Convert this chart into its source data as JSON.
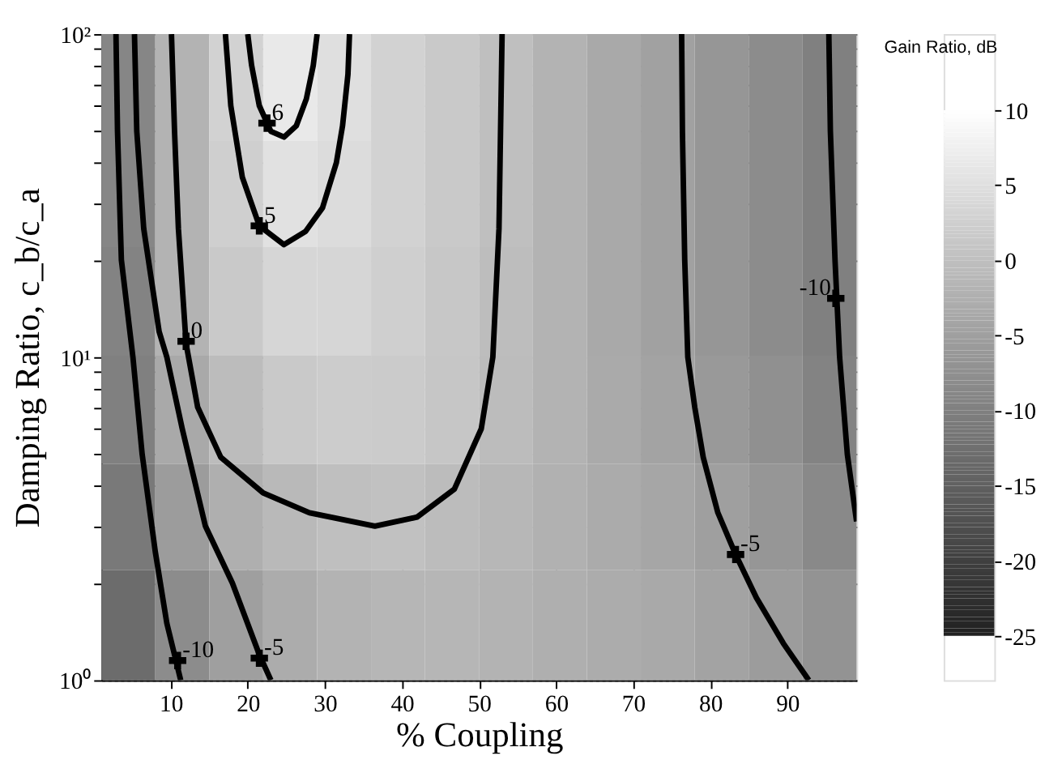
{
  "chart_data": {
    "type": "heatmap",
    "xlabel": "% Coupling",
    "ylabel": "Damping Ratio, c_b/c_a",
    "legend_title": "Gain Ratio, dB",
    "x": [
      4.5,
      11.5,
      18.5,
      25.5,
      32.5,
      39.5,
      46.5,
      53.5,
      60.5,
      67.5,
      74.5,
      81.5,
      88.5,
      95.5
    ],
    "y": [
      68,
      32,
      15,
      6.8,
      3.2,
      1.5
    ],
    "cells": [
      [
        -9,
        -2,
        3,
        6.5,
        5,
        3,
        1.5,
        0,
        -2,
        -3.5,
        -4.8,
        -6.5,
        -8,
        -10
      ],
      [
        -9,
        -2,
        2.5,
        5.3,
        4.5,
        3,
        1.5,
        0,
        -2,
        -3.5,
        -4.8,
        -6.5,
        -8,
        -10
      ],
      [
        -9.5,
        -2,
        1.5,
        3.5,
        3.5,
        2.5,
        1.2,
        -0.3,
        -2,
        -3.5,
        -4.8,
        -6.5,
        -8,
        -10
      ],
      [
        -10,
        -3.5,
        -0.5,
        1.5,
        2,
        1.8,
        1,
        -0.5,
        -2,
        -3.3,
        -4.5,
        -6,
        -7.5,
        -9.5
      ],
      [
        -11,
        -5.5,
        -2.5,
        -1,
        0,
        0.2,
        -0.5,
        -1.3,
        -2.3,
        -3.2,
        -4,
        -5,
        -6.5,
        -8.5
      ],
      [
        -13,
        -8,
        -5,
        -3,
        -2,
        -1.5,
        -1.5,
        -2,
        -2.5,
        -3,
        -3.5,
        -4.5,
        -5.5,
        -7
      ]
    ],
    "clim": [
      -25,
      10
    ],
    "cticks": [
      -25,
      -20,
      -15,
      -10,
      -5,
      0,
      5,
      10
    ],
    "xlim": [
      1,
      99
    ],
    "xticks": [
      10,
      20,
      30,
      40,
      50,
      60,
      70,
      80,
      90
    ],
    "ylim": [
      1,
      100
    ],
    "log": "y",
    "yticks": [
      {
        "value": 1,
        "label": "10⁰"
      },
      {
        "value": 2,
        "label": null
      },
      {
        "value": 3,
        "label": null
      },
      {
        "value": 4,
        "label": null
      },
      {
        "value": 5,
        "label": null
      },
      {
        "value": 6,
        "label": null
      },
      {
        "value": 7,
        "label": null
      },
      {
        "value": 8,
        "label": null
      },
      {
        "value": 9,
        "label": null
      },
      {
        "value": 10,
        "label": "10¹"
      },
      {
        "value": 20,
        "label": null
      },
      {
        "value": 30,
        "label": null
      },
      {
        "value": 40,
        "label": null
      },
      {
        "value": 50,
        "label": null
      },
      {
        "value": 60,
        "label": null
      },
      {
        "value": 70,
        "label": null
      },
      {
        "value": 80,
        "label": null
      },
      {
        "value": 90,
        "label": null
      },
      {
        "value": 100,
        "label": "10²"
      }
    ],
    "grid": true,
    "series": [
      {
        "type": "line",
        "color": "#000000",
        "x": [
          2.9,
          3.1,
          3.6,
          5.1,
          6.3,
          8,
          9.5,
          11.3
        ],
        "values": [
          100,
          50,
          20,
          10,
          5,
          2.5,
          1.5,
          1
        ]
      },
      {
        "type": "line",
        "color": "#000000",
        "x": [
          5.3,
          5.6,
          6.5,
          8.5,
          9.5,
          11.5,
          14.5,
          18,
          21.5,
          23
        ],
        "values": [
          100,
          50,
          25,
          12,
          10,
          6,
          3,
          2,
          1.2,
          1
        ]
      },
      {
        "type": "line",
        "color": "#000000",
        "x": [
          10.1,
          10.5,
          11,
          12,
          13.5,
          16.5,
          22,
          28,
          36.5,
          42,
          46.8,
          50.3,
          51.8,
          52.6,
          53
        ],
        "values": [
          100,
          50,
          25,
          11,
          7,
          4.9,
          3.8,
          3.3,
          3.0,
          3.2,
          3.9,
          6,
          10,
          25,
          100
        ]
      },
      {
        "type": "line",
        "color": "#000000",
        "x": [
          17.1,
          17.8,
          19.3,
          21.5,
          24.7,
          27.5,
          29.7,
          31.5,
          32.3,
          33,
          33.2
        ],
        "values": [
          100,
          60,
          36,
          25.5,
          22.3,
          24.5,
          29,
          40,
          52,
          75,
          100
        ]
      },
      {
        "type": "line",
        "color": "#000000",
        "x": [
          20,
          20.5,
          21.5,
          23,
          24.7,
          26.3,
          27.6,
          28.5,
          29
        ],
        "values": [
          100,
          80,
          60,
          50,
          48,
          52,
          63,
          80,
          100
        ]
      },
      {
        "type": "line",
        "color": "#000000",
        "x": [
          76.3,
          76.4,
          76.7,
          77.1,
          78,
          79.1,
          81,
          83.3,
          86,
          89.5,
          92.8
        ],
        "values": [
          100,
          50,
          20,
          10,
          7,
          4.9,
          3.3,
          2.45,
          1.8,
          1.3,
          1
        ]
      },
      {
        "type": "line",
        "color": "#000000",
        "x": [
          95.4,
          95.6,
          96.2,
          96.8,
          97.8,
          99
        ],
        "values": [
          100,
          50,
          20,
          10,
          5,
          3.1
        ]
      }
    ],
    "annotations": [
      {
        "text": "6",
        "x": 22.5,
        "y": 53
      },
      {
        "text": "5",
        "x": 21.5,
        "y": 25.5
      },
      {
        "text": "0",
        "x": 12,
        "y": 11.2
      },
      {
        "text": "-10",
        "x": 10.9,
        "y": 1.15
      },
      {
        "text": "-5",
        "x": 21.5,
        "y": 1.17
      },
      {
        "text": "-5",
        "x": 83.3,
        "y": 2.45
      },
      {
        "text": "-10",
        "x": 96.3,
        "y": 15.2
      }
    ]
  }
}
